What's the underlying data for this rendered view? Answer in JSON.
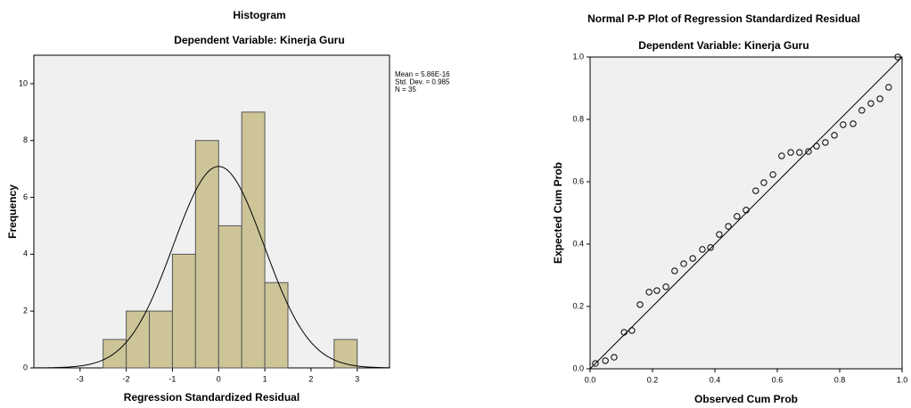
{
  "chart_data": [
    {
      "type": "histogram",
      "title": "Histogram",
      "subtitle": "Dependent Variable: Kinerja Guru",
      "xlabel": "Regression Standardized Residual",
      "ylabel": "Frequency",
      "bins": [
        -2.5,
        -2,
        -1.5,
        -1,
        -0.5,
        0,
        0.5,
        1,
        1.5,
        2,
        2.5,
        3
      ],
      "values": [
        1,
        2,
        2,
        4,
        8,
        5,
        9,
        3,
        0,
        0,
        1
      ],
      "color": "#cdc598",
      "curve_color": "#000000",
      "xlim": [
        -4,
        3.7
      ],
      "ylim": [
        0,
        11
      ],
      "xticks": [
        -3,
        -2,
        -1,
        0,
        1,
        2,
        3
      ],
      "yticks": [
        0,
        2,
        4,
        6,
        8,
        10
      ],
      "stats": [
        {
          "label": "Mean = 5.86E-16",
          "value": 5.86e-16
        },
        {
          "label": "Std. Dev. = 0.985",
          "value": 0.985
        },
        {
          "label": "N = 35",
          "value": 35
        }
      ]
    },
    {
      "type": "scatter",
      "title": "Normal P-P Plot of Regression Standardized Residual",
      "subtitle": "Dependent Variable: Kinerja Guru",
      "xlabel": "Observed Cum Prob",
      "ylabel": "Expected Cum Prob",
      "x": [
        0.017,
        0.049,
        0.077,
        0.109,
        0.134,
        0.16,
        0.189,
        0.214,
        0.243,
        0.271,
        0.3,
        0.329,
        0.36,
        0.386,
        0.414,
        0.443,
        0.471,
        0.5,
        0.531,
        0.557,
        0.586,
        0.614,
        0.643,
        0.671,
        0.7,
        0.726,
        0.754,
        0.783,
        0.811,
        0.843,
        0.871,
        0.9,
        0.929,
        0.957,
        0.986
      ],
      "y": [
        0.017,
        0.026,
        0.037,
        0.117,
        0.123,
        0.206,
        0.246,
        0.251,
        0.263,
        0.314,
        0.337,
        0.354,
        0.383,
        0.389,
        0.431,
        0.457,
        0.489,
        0.509,
        0.571,
        0.597,
        0.623,
        0.683,
        0.694,
        0.694,
        0.697,
        0.714,
        0.726,
        0.749,
        0.783,
        0.786,
        0.829,
        0.851,
        0.866,
        0.903,
        1.0
      ],
      "color": "#000000",
      "reference_line": true,
      "xlim": [
        0,
        1
      ],
      "ylim": [
        0,
        1
      ],
      "xticks": [
        {
          "value": 0,
          "label": "0.0"
        },
        0.2,
        0.4,
        0.6,
        0.8,
        {
          "value": 1,
          "label": "1.0"
        }
      ],
      "yticks": [
        {
          "value": 0,
          "label": "0.0"
        },
        0.2,
        0.4,
        0.6,
        0.8,
        {
          "value": 1,
          "label": "1.0"
        }
      ]
    }
  ]
}
